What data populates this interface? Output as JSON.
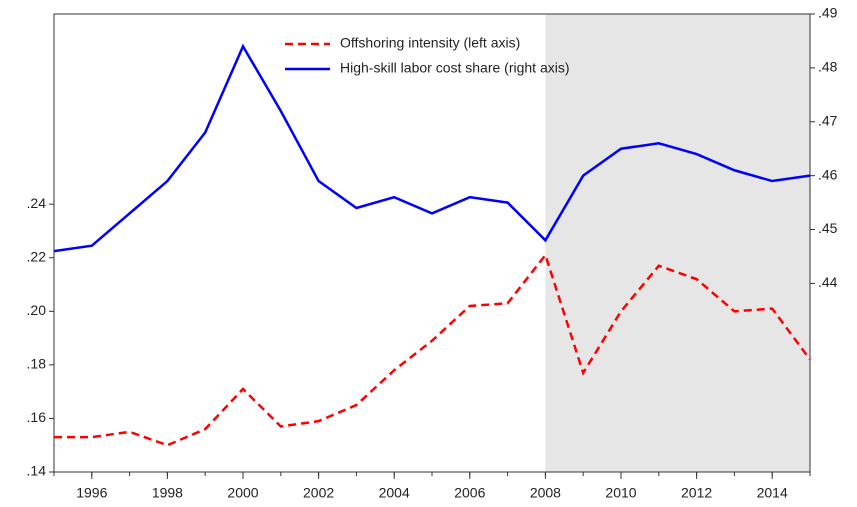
{
  "chart_data": {
    "type": "line",
    "x": [
      1995,
      1996,
      1997,
      1998,
      1999,
      2000,
      2001,
      2002,
      2003,
      2004,
      2005,
      2006,
      2007,
      2008,
      2009,
      2010,
      2011,
      2012,
      2013,
      2014,
      2015
    ],
    "series": [
      {
        "name": "Offshoring intensity (left axis)",
        "color": "#ff0000",
        "style": "dashed",
        "values": [
          0.153,
          0.153,
          0.155,
          0.15,
          0.156,
          0.171,
          0.157,
          0.159,
          0.165,
          0.178,
          0.189,
          0.202,
          0.203,
          0.221,
          0.177,
          0.2,
          0.217,
          0.212,
          0.2,
          0.201,
          0.182
        ]
      },
      {
        "name": "High-skill labor cost share (right axis)",
        "color": "#0000ff",
        "style": "solid",
        "axis": "y2",
        "values": [
          0.446,
          0.447,
          0.453,
          0.459,
          0.468,
          0.484,
          0.472,
          0.459,
          0.454,
          0.456,
          0.453,
          0.456,
          0.455,
          0.448,
          0.46,
          0.465,
          0.466,
          0.464,
          0.461,
          0.459,
          0.46
        ]
      }
    ],
    "xlim": [
      1995,
      2015
    ],
    "xticks": [
      1996,
      1998,
      2000,
      2002,
      2004,
      2006,
      2008,
      2010,
      2012,
      2014
    ],
    "ylim": [
      0.14,
      0.311
    ],
    "yticks": [
      {
        "value": 0.14,
        "label": ".14"
      },
      {
        "value": 0.16,
        "label": ".16"
      },
      {
        "value": 0.18,
        "label": ".18"
      },
      {
        "value": 0.2,
        "label": ".20"
      },
      {
        "value": 0.22,
        "label": ".22"
      },
      {
        "value": 0.24,
        "label": ".24"
      }
    ],
    "y2lim": [
      0.405,
      0.49
    ],
    "y2ticks": [
      {
        "value": 0.44,
        "label": ".44"
      },
      {
        "value": 0.45,
        "label": ".45"
      },
      {
        "value": 0.46,
        "label": ".46"
      },
      {
        "value": 0.47,
        "label": ".47"
      },
      {
        "value": 0.48,
        "label": ".48"
      },
      {
        "value": 0.49,
        "label": ".49"
      }
    ],
    "shaded_xrange": [
      2008,
      2015
    ],
    "shade_color": "#e6e6e6",
    "legend": "top-center"
  }
}
